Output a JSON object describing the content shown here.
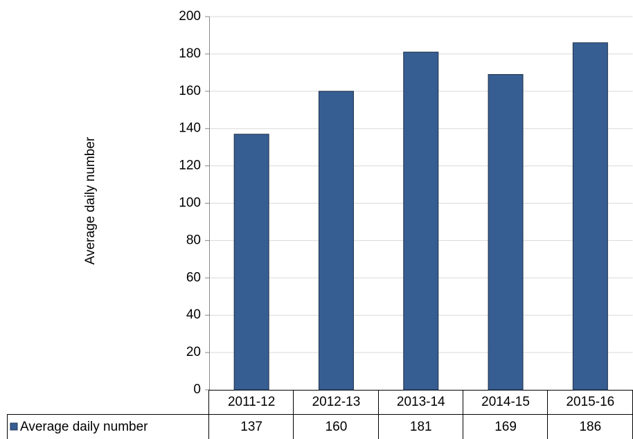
{
  "chart_data": {
    "type": "bar",
    "y_label": "Average daily number",
    "categories": [
      "2011-12",
      "2012-13",
      "2013-14",
      "2014-15",
      "2015-16"
    ],
    "series": [
      {
        "name": "Average daily number",
        "color": "#375e92",
        "values": [
          137,
          160,
          181,
          169,
          186
        ]
      }
    ],
    "ylim": [
      0,
      200
    ],
    "yticks": [
      0,
      20,
      40,
      60,
      80,
      100,
      120,
      140,
      160,
      180,
      200
    ],
    "grid": true
  }
}
